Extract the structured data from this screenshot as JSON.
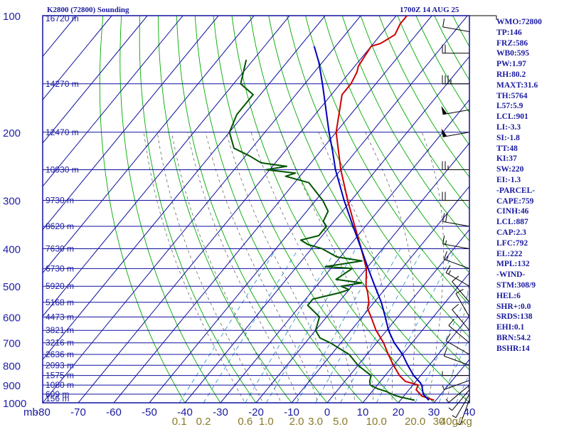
{
  "header": {
    "station": "K2800 (72800) Sounding",
    "time": "1700Z 14 AUG 25"
  },
  "indices": [
    "WMO:72800",
    "TP:146",
    "FRZ:586",
    "WB0:595",
    "PW:1.97",
    "RH:80.2",
    "MAXT:31.6",
    "TH:5764",
    "L57:5.9",
    "LCL:901",
    "LI:-3.3",
    "SI:-1.8",
    "TT:48",
    "KI:37",
    "SW:220",
    "EI:-1.3",
    "-PARCEL-",
    "CAPE:759",
    "CINH:46",
    "LCL:887",
    "CAP:2.3",
    "LFC:792",
    "EL:222",
    "MPL:132",
    "-WIND-",
    "STM:308/9",
    "HEL:6",
    "SHR+:0.0",
    "SRDS:138",
    "EHI:0.1",
    "BRN:54.2",
    "BSHR:14"
  ],
  "chart_data": {
    "type": "line",
    "title": "K2800 (72800) Sounding",
    "y_axis": {
      "unit_label": "mb",
      "scale": "log",
      "range": [
        1000,
        100
      ],
      "ticks": [
        "100",
        "200",
        "300",
        "400",
        "500",
        "600",
        "700",
        "800",
        "900",
        "1000"
      ],
      "tick_values": [
        100,
        200,
        300,
        400,
        500,
        600,
        700,
        800,
        900,
        1000
      ]
    },
    "x_axis": {
      "range": [
        -80,
        40
      ],
      "ticks": [
        "-80",
        "-70",
        "-60",
        "-50",
        "-40",
        "-30",
        "-20",
        "-10",
        "0",
        "10",
        "20",
        "30",
        "40"
      ],
      "tick_values": [
        -80,
        -70,
        -60,
        -50,
        -40,
        -30,
        -20,
        -10,
        0,
        10,
        20,
        30,
        40
      ],
      "skew": true
    },
    "height_labels": [
      {
        "p": 100,
        "text": "16720 m"
      },
      {
        "p": 150,
        "text": "14270 m"
      },
      {
        "p": 200,
        "text": "12470 m"
      },
      {
        "p": 250,
        "text": "10930 m"
      },
      {
        "p": 300,
        "text": "9730 m"
      },
      {
        "p": 350,
        "text": "8620 m"
      },
      {
        "p": 400,
        "text": "7630 m"
      },
      {
        "p": 450,
        "text": "6730 m"
      },
      {
        "p": 500,
        "text": "5920 m"
      },
      {
        "p": 550,
        "text": "5168 m"
      },
      {
        "p": 600,
        "text": "4473 m"
      },
      {
        "p": 650,
        "text": "3821 m"
      },
      {
        "p": 700,
        "text": "3216 m"
      },
      {
        "p": 750,
        "text": "2636 m"
      },
      {
        "p": 800,
        "text": "2093 m"
      },
      {
        "p": 850,
        "text": "1575 m"
      },
      {
        "p": 900,
        "text": "1080 m"
      },
      {
        "p": 950,
        "text": "609 m"
      },
      {
        "p": 1000,
        "text": "156 m"
      }
    ],
    "mixing_ratio_labels": [
      "0.1",
      "0.2",
      "0.6",
      "1.0",
      "2.0",
      "3.0",
      "5.0",
      "10.0",
      "20.0",
      "30",
      "40g/kg"
    ],
    "mixing_ratio_values": [
      0.1,
      0.2,
      0.6,
      1.0,
      2.0,
      3.0,
      5.0,
      10.0,
      20.0,
      30,
      40
    ],
    "grid": true,
    "series": [
      {
        "kind": "temperature",
        "color": "#cc0000",
        "points": [
          [
            985,
            29.5
          ],
          [
            960,
            25
          ],
          [
            925,
            22
          ],
          [
            900,
            21.5
          ],
          [
            880,
            17
          ],
          [
            850,
            14
          ],
          [
            800,
            10
          ],
          [
            750,
            6
          ],
          [
            700,
            2
          ],
          [
            650,
            -3
          ],
          [
            600,
            -7.5
          ],
          [
            570,
            -10.5
          ],
          [
            550,
            -11.5
          ],
          [
            520,
            -14
          ],
          [
            500,
            -16
          ],
          [
            450,
            -20
          ],
          [
            400,
            -26
          ],
          [
            350,
            -33
          ],
          [
            300,
            -41
          ],
          [
            250,
            -50
          ],
          [
            200,
            -60
          ],
          [
            160,
            -67
          ],
          [
            150,
            -67
          ],
          [
            140,
            -68
          ],
          [
            135,
            -69
          ],
          [
            120,
            -70
          ],
          [
            118,
            -68
          ],
          [
            112,
            -66
          ],
          [
            105,
            -67
          ],
          [
            100,
            -67
          ]
        ]
      },
      {
        "kind": "dewpoint",
        "color": "#005500",
        "points": [
          [
            985,
            24
          ],
          [
            965,
            19
          ],
          [
            955,
            17
          ],
          [
            935,
            14
          ],
          [
            920,
            11
          ],
          [
            900,
            8
          ],
          [
            880,
            7
          ],
          [
            850,
            6
          ],
          [
            800,
            0
          ],
          [
            750,
            -5
          ],
          [
            700,
            -13
          ],
          [
            680,
            -17
          ],
          [
            650,
            -20
          ],
          [
            600,
            -22
          ],
          [
            560,
            -28
          ],
          [
            540,
            -28
          ],
          [
            520,
            -22
          ],
          [
            510,
            -20
          ],
          [
            500,
            -23
          ],
          [
            490,
            -18
          ],
          [
            480,
            -26
          ],
          [
            450,
            -24
          ],
          [
            445,
            -32
          ],
          [
            430,
            -23
          ],
          [
            420,
            -31
          ],
          [
            400,
            -37
          ],
          [
            390,
            -42
          ],
          [
            380,
            -45
          ],
          [
            370,
            -41
          ],
          [
            360,
            -41
          ],
          [
            350,
            -41
          ],
          [
            340,
            -43
          ],
          [
            320,
            -44
          ],
          [
            300,
            -48
          ],
          [
            270,
            -56
          ],
          [
            260,
            -64
          ],
          [
            255,
            -62
          ],
          [
            250,
            -71
          ],
          [
            245,
            -66
          ],
          [
            240,
            -74
          ],
          [
            230,
            -79
          ],
          [
            220,
            -85
          ],
          [
            200,
            -90
          ],
          [
            180,
            -92
          ],
          [
            160,
            -92
          ],
          [
            150,
            -98
          ],
          [
            130,
            -102
          ]
        ]
      },
      {
        "kind": "parcel",
        "color": "#0000bb",
        "points": [
          [
            985,
            28
          ],
          [
            950,
            25
          ],
          [
            900,
            22.5
          ],
          [
            887,
            21.5
          ],
          [
            850,
            18
          ],
          [
            800,
            14
          ],
          [
            750,
            10
          ],
          [
            700,
            5
          ],
          [
            650,
            0.5
          ],
          [
            600,
            -3.5
          ],
          [
            550,
            -8
          ],
          [
            500,
            -13.5
          ],
          [
            450,
            -19.5
          ],
          [
            400,
            -26
          ],
          [
            350,
            -33.5
          ],
          [
            300,
            -42
          ],
          [
            250,
            -51.5
          ],
          [
            222,
            -57
          ],
          [
            200,
            -62
          ],
          [
            150,
            -75
          ],
          [
            132,
            -81
          ],
          [
            120,
            -86
          ]
        ]
      }
    ],
    "wind_barbs": [
      {
        "p": 980,
        "dir": 200,
        "spd": 5
      },
      {
        "p": 950,
        "dir": 210,
        "spd": 5
      },
      {
        "p": 925,
        "dir": 220,
        "spd": 5
      },
      {
        "p": 900,
        "dir": 230,
        "spd": 5
      },
      {
        "p": 875,
        "dir": 250,
        "spd": 5
      },
      {
        "p": 850,
        "dir": 270,
        "spd": 5
      },
      {
        "p": 800,
        "dir": 290,
        "spd": 10
      },
      {
        "p": 750,
        "dir": 300,
        "spd": 10
      },
      {
        "p": 700,
        "dir": 310,
        "spd": 10
      },
      {
        "p": 650,
        "dir": 320,
        "spd": 10
      },
      {
        "p": 600,
        "dir": 330,
        "spd": 10
      },
      {
        "p": 550,
        "dir": 320,
        "spd": 10
      },
      {
        "p": 500,
        "dir": 300,
        "spd": 15
      },
      {
        "p": 450,
        "dir": 290,
        "spd": 15
      },
      {
        "p": 400,
        "dir": 280,
        "spd": 15
      },
      {
        "p": 350,
        "dir": 280,
        "spd": 20
      },
      {
        "p": 300,
        "dir": 270,
        "spd": 20
      },
      {
        "p": 250,
        "dir": 270,
        "spd": 25
      },
      {
        "p": 200,
        "dir": 260,
        "spd": 50
      },
      {
        "p": 175,
        "dir": 260,
        "spd": 50
      },
      {
        "p": 150,
        "dir": 270,
        "spd": 35
      },
      {
        "p": 125,
        "dir": 270,
        "spd": 20
      },
      {
        "p": 110,
        "dir": 280,
        "spd": 10
      },
      {
        "p": 100,
        "dir": 90,
        "spd": 5
      }
    ],
    "colors": {
      "frame": "#1010a0",
      "dry_adiabat": "#00aa00",
      "moist_adiabat": "#555555",
      "mixing_ratio": "#2288cc",
      "temperature": "#cc0000",
      "dewpoint": "#005500",
      "parcel": "#0000bb",
      "wind_barb": "#000000"
    }
  }
}
